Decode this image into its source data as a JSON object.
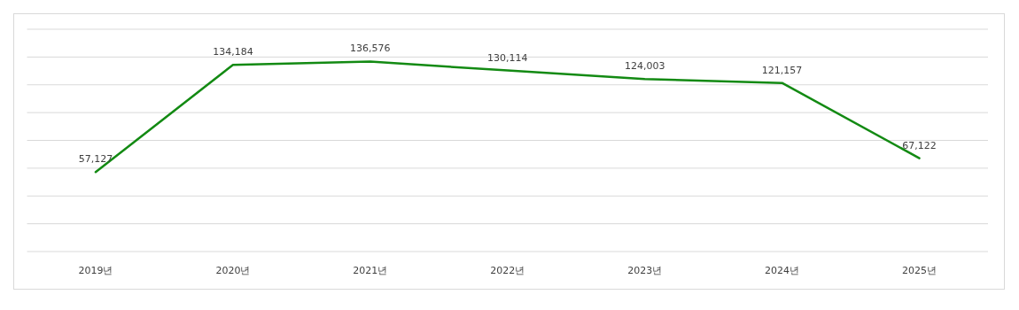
{
  "chart_data": {
    "type": "line",
    "categories": [
      "2019년",
      "2020년",
      "2021년",
      "2022년",
      "2023년",
      "2024년",
      "2025년"
    ],
    "series": [
      {
        "color": "#138a13",
        "values": [
          57127,
          134184,
          136576,
          130114,
          124003,
          121157,
          67122
        ],
        "value_labels": [
          "57,127",
          "134,184",
          "136,576",
          "130,114",
          "124,003",
          "121,157",
          "67,122"
        ]
      }
    ],
    "grid": "y",
    "tick_labels": "x",
    "marker": "none",
    "line_style": "solid"
  }
}
